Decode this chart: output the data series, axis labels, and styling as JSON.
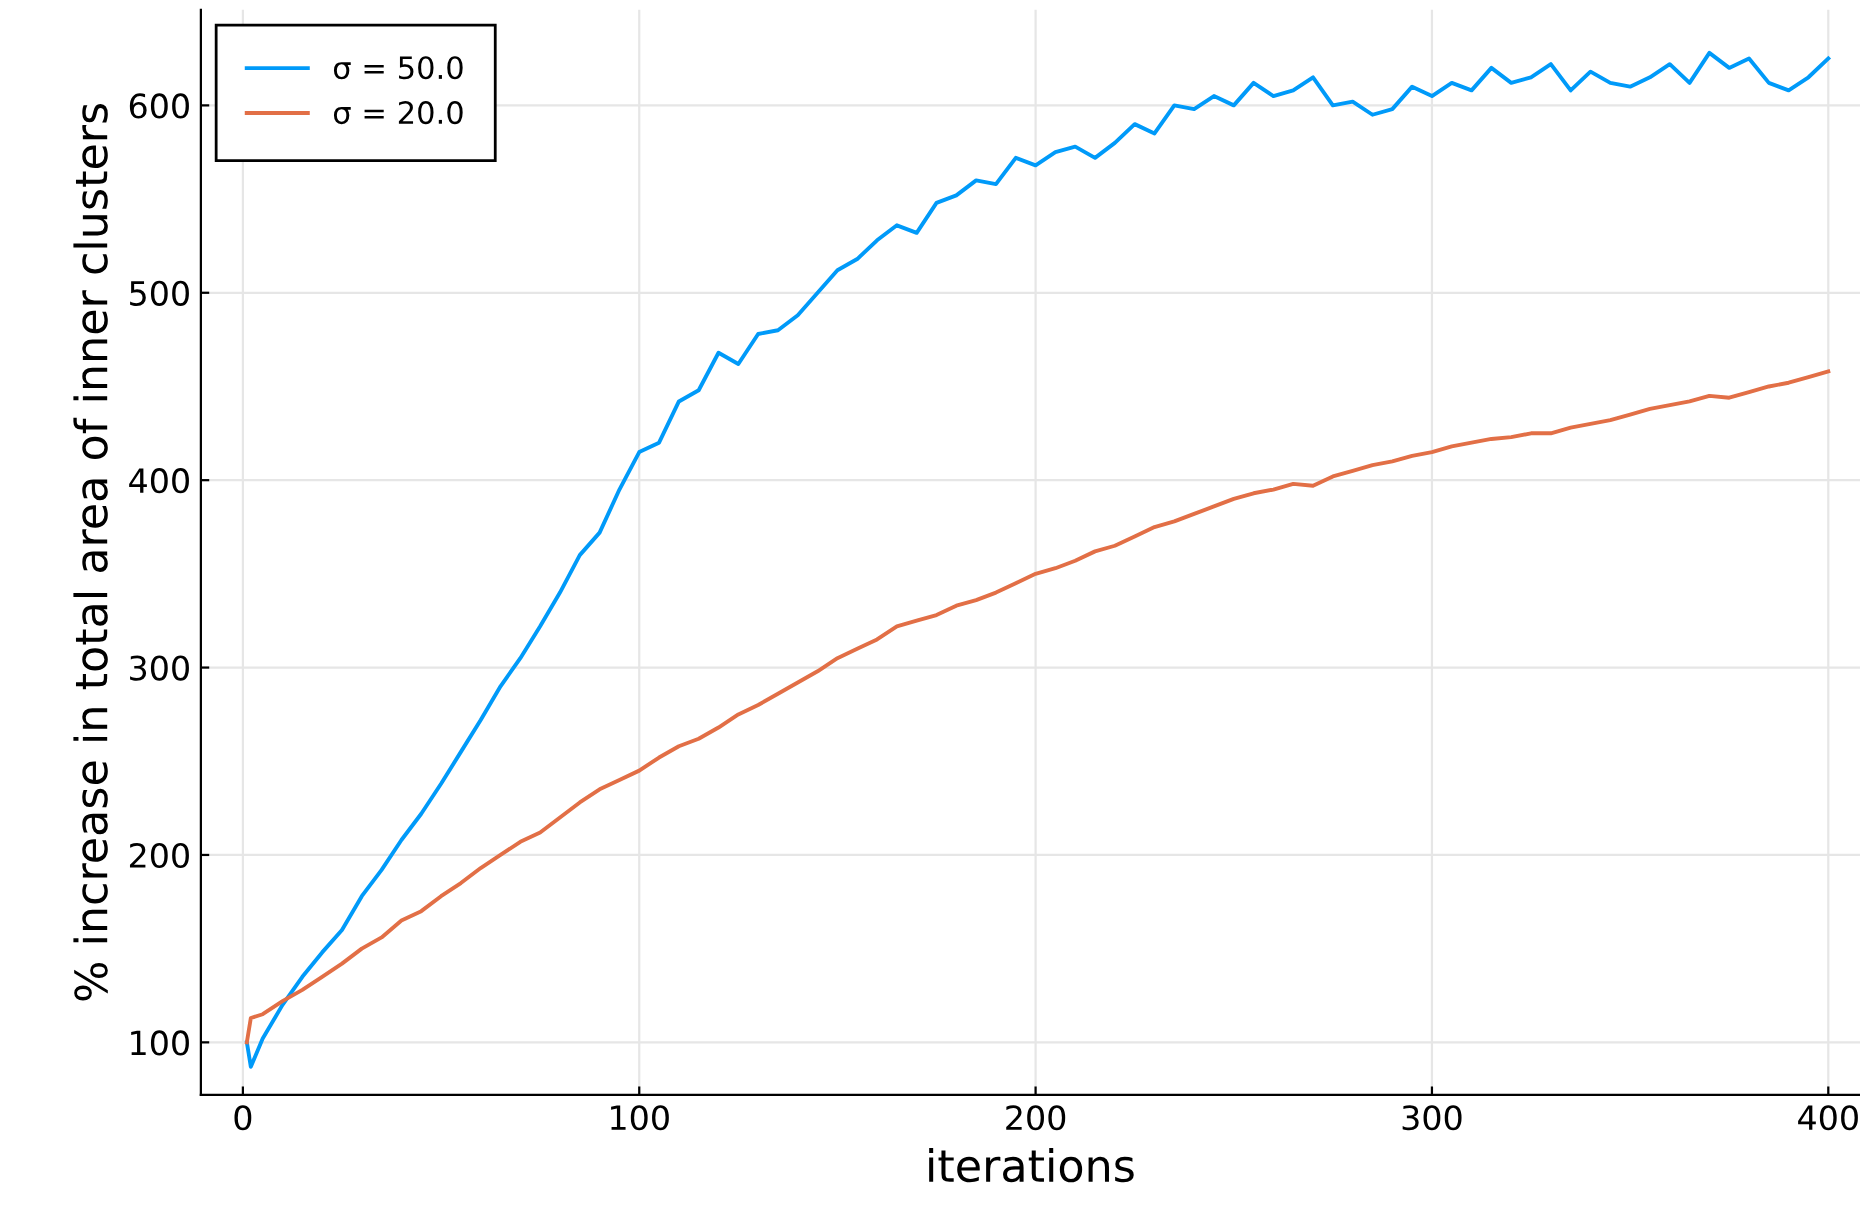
{
  "chart_data": {
    "type": "line",
    "xlabel": "iterations",
    "ylabel": "% increase in total area of inner clusters",
    "xlim": [
      -10.6,
      408
    ],
    "ylim": [
      72,
      651
    ],
    "xticks": [
      0,
      100,
      200,
      300,
      400
    ],
    "yticks": [
      100,
      200,
      300,
      400,
      500,
      600
    ],
    "grid": true,
    "legend": "top left",
    "line_style": "solid",
    "marker": "none",
    "series": [
      {
        "name": "σ = 50.0",
        "color": "#009af9",
        "x": [
          1,
          2,
          5,
          10,
          15,
          20,
          25,
          30,
          35,
          40,
          45,
          50,
          55,
          60,
          65,
          70,
          75,
          80,
          85,
          90,
          95,
          100,
          105,
          110,
          115,
          120,
          125,
          130,
          135,
          140,
          145,
          150,
          155,
          160,
          165,
          170,
          175,
          180,
          185,
          190,
          195,
          200,
          205,
          210,
          215,
          220,
          225,
          230,
          235,
          240,
          245,
          250,
          255,
          260,
          265,
          270,
          275,
          280,
          285,
          290,
          295,
          300,
          305,
          310,
          315,
          320,
          325,
          330,
          335,
          340,
          345,
          350,
          355,
          360,
          365,
          370,
          375,
          380,
          385,
          390,
          395,
          400
        ],
        "values": [
          100,
          87,
          102,
          120,
          135,
          148,
          160,
          178,
          192,
          208,
          222,
          238,
          255,
          272,
          290,
          305,
          322,
          340,
          360,
          372,
          395,
          415,
          420,
          442,
          448,
          468,
          462,
          478,
          480,
          488,
          500,
          512,
          518,
          528,
          536,
          532,
          548,
          552,
          560,
          558,
          572,
          568,
          575,
          578,
          572,
          580,
          590,
          585,
          600,
          598,
          605,
          600,
          612,
          605,
          608,
          615,
          600,
          602,
          595,
          598,
          610,
          605,
          612,
          608,
          620,
          612,
          615,
          622,
          608,
          618,
          612,
          610,
          615,
          622,
          612,
          628,
          620,
          625,
          612,
          608,
          615,
          625
        ]
      },
      {
        "name": "σ = 20.0",
        "color": "#e26f46",
        "x": [
          1,
          2,
          5,
          10,
          15,
          20,
          25,
          30,
          35,
          40,
          45,
          50,
          55,
          60,
          65,
          70,
          75,
          80,
          85,
          90,
          95,
          100,
          105,
          110,
          115,
          120,
          125,
          130,
          135,
          140,
          145,
          150,
          155,
          160,
          165,
          170,
          175,
          180,
          185,
          190,
          195,
          200,
          205,
          210,
          215,
          220,
          225,
          230,
          235,
          240,
          245,
          250,
          255,
          260,
          265,
          270,
          275,
          280,
          285,
          290,
          295,
          300,
          305,
          310,
          315,
          320,
          325,
          330,
          335,
          340,
          345,
          350,
          355,
          360,
          365,
          370,
          375,
          380,
          385,
          390,
          395,
          400
        ],
        "values": [
          100,
          113,
          115,
          122,
          128,
          135,
          142,
          150,
          156,
          165,
          170,
          178,
          185,
          193,
          200,
          207,
          212,
          220,
          228,
          235,
          240,
          245,
          252,
          258,
          262,
          268,
          275,
          280,
          286,
          292,
          298,
          305,
          310,
          315,
          322,
          325,
          328,
          333,
          336,
          340,
          345,
          350,
          353,
          357,
          362,
          365,
          370,
          375,
          378,
          382,
          386,
          390,
          393,
          395,
          398,
          397,
          402,
          405,
          408,
          410,
          413,
          415,
          418,
          420,
          422,
          423,
          425,
          425,
          428,
          430,
          432,
          435,
          438,
          440,
          442,
          445,
          444,
          447,
          450,
          452,
          455,
          458
        ]
      }
    ]
  }
}
